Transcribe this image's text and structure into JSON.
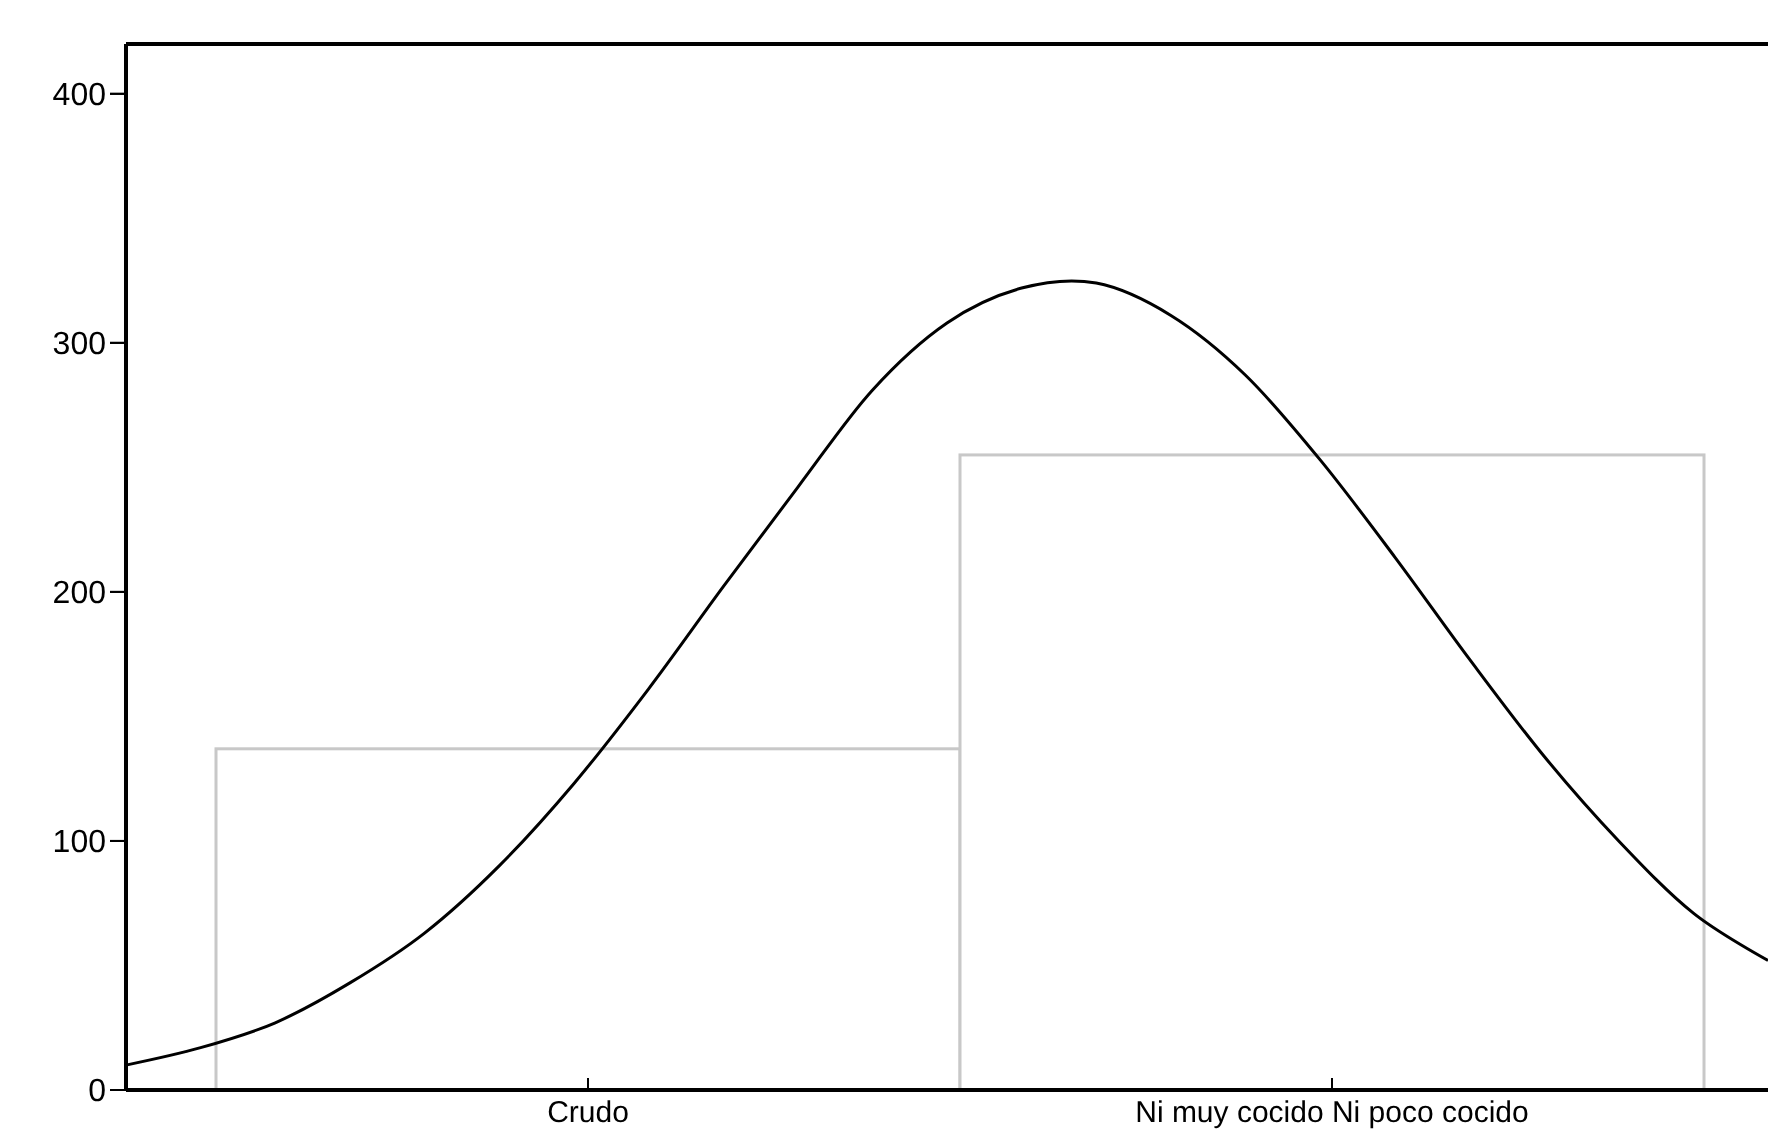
{
  "chart_data": [
    {
      "type": "bar",
      "categories": [
        "Crudo",
        "Ni muy cocido Ni poco cocido"
      ],
      "values": [
        137,
        255
      ],
      "color": "#c8c8c8",
      "ylim": [
        0,
        420
      ],
      "yticks": [
        0,
        100,
        200,
        300,
        400
      ],
      "grid": false
    },
    {
      "type": "line",
      "categories": [
        null,
        null,
        null,
        null,
        null,
        null,
        null,
        null,
        null,
        null,
        null,
        null,
        null,
        null,
        null,
        null,
        null,
        null,
        null,
        null,
        null,
        null,
        null
      ],
      "values": [
        10,
        17,
        27,
        43,
        63,
        90,
        123,
        161,
        202,
        242,
        281,
        308,
        322,
        324,
        311,
        287,
        253,
        214,
        173,
        134,
        100,
        71,
        52
      ],
      "color": "#000000",
      "ylim": [
        0,
        420
      ],
      "yticks": [
        0,
        100,
        200,
        300,
        400
      ],
      "tick_labels": false
    }
  ]
}
